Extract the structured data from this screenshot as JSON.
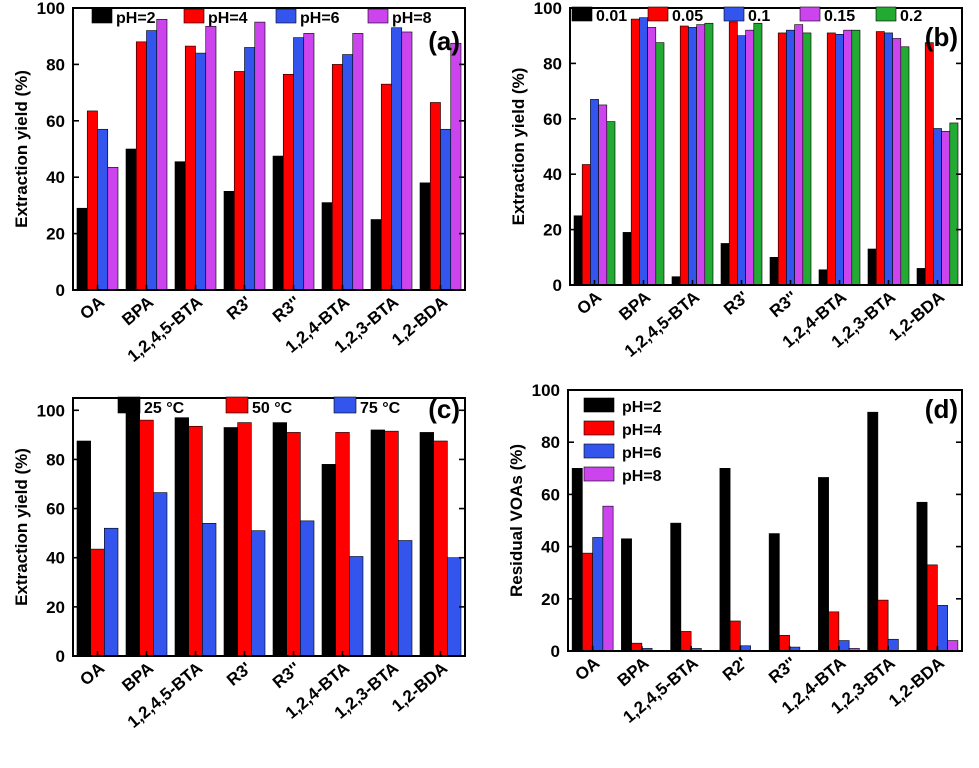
{
  "chart_data": [
    {
      "id": "a",
      "type": "bar",
      "panel_label": "(a)",
      "ylabel": "Extraction yield (%)",
      "ylim": [
        0,
        100
      ],
      "yticks": [
        0,
        20,
        40,
        60,
        80,
        100
      ],
      "categories": [
        "OA",
        "BPA",
        "1,2,4,5-BTA",
        "R3'",
        "R3''",
        "1,2,4-BTA",
        "1,2,3-BTA",
        "1,2-BDA"
      ],
      "legend_position": "top",
      "series": [
        {
          "name": "pH=2",
          "color": "#000000",
          "values": [
            29,
            50,
            45.5,
            35,
            47.5,
            31,
            25,
            38
          ]
        },
        {
          "name": "pH=4",
          "color": "#ff0000",
          "values": [
            63.5,
            88,
            86.5,
            77.5,
            76.5,
            80,
            73,
            66.5
          ]
        },
        {
          "name": "pH=6",
          "color": "#3355ee",
          "values": [
            57,
            92,
            84,
            86,
            89.5,
            83.5,
            93,
            57
          ]
        },
        {
          "name": "pH=8",
          "color": "#cc44ee",
          "values": [
            43.5,
            96,
            93.5,
            95,
            91,
            91,
            91.5,
            87.5
          ]
        }
      ]
    },
    {
      "id": "b",
      "type": "bar",
      "panel_label": "(b)",
      "ylabel": "Extraction yield (%)",
      "ylim": [
        0,
        100
      ],
      "yticks": [
        0,
        20,
        40,
        60,
        80,
        100
      ],
      "categories": [
        "OA",
        "BPA",
        "1,2,4,5-BTA",
        "R3'",
        "R3''",
        "1,2,4-BTA",
        "1,2,3-BTA",
        "1,2-BDA"
      ],
      "legend_position": "top",
      "series": [
        {
          "name": "0.01",
          "color": "#000000",
          "values": [
            25,
            19,
            3,
            15,
            10,
            5.5,
            13,
            6
          ]
        },
        {
          "name": "0.05",
          "color": "#ff0000",
          "values": [
            43.5,
            96,
            93.5,
            95,
            91,
            91,
            91.5,
            87.5
          ]
        },
        {
          "name": "0.1",
          "color": "#3355ee",
          "values": [
            67,
            96.5,
            93,
            90,
            92,
            90.5,
            91,
            56.5
          ]
        },
        {
          "name": "0.15",
          "color": "#cc44ee",
          "values": [
            65,
            93,
            94,
            92,
            94,
            92,
            89,
            55.5
          ]
        },
        {
          "name": "0.2",
          "color": "#22aa33",
          "values": [
            59,
            87.5,
            94.5,
            94.5,
            91,
            92,
            86,
            58.5
          ]
        }
      ]
    },
    {
      "id": "c",
      "type": "bar",
      "panel_label": "(c)",
      "ylabel": "Extraction yield (%)",
      "ylim": [
        0,
        105
      ],
      "yticks": [
        0,
        20,
        40,
        60,
        80,
        100
      ],
      "categories": [
        "OA",
        "BPA",
        "1,2,4,5-BTA",
        "R3'",
        "R3''",
        "1,2,4-BTA",
        "1,2,3-BTA",
        "1,2-BDA"
      ],
      "legend_position": "top",
      "series": [
        {
          "name": "25 °C",
          "color": "#000000",
          "values": [
            87.5,
            102,
            97,
            93,
            95,
            78,
            92,
            91
          ]
        },
        {
          "name": "50 °C",
          "color": "#ff0000",
          "values": [
            43.5,
            96,
            93.5,
            95,
            91,
            91,
            91.5,
            87.5
          ]
        },
        {
          "name": "75 °C",
          "color": "#3355ee",
          "values": [
            52,
            66.5,
            54,
            51,
            55,
            40.5,
            47,
            40
          ]
        }
      ]
    },
    {
      "id": "d",
      "type": "bar",
      "panel_label": "(d)",
      "ylabel": "Residual VOAs (%)",
      "ylim": [
        0,
        100
      ],
      "yticks": [
        0,
        20,
        40,
        60,
        80,
        100
      ],
      "categories": [
        "OA",
        "BPA",
        "1,2,4,5-BTA",
        "R2'",
        "R3''",
        "1,2,4-BTA",
        "1,2,3-BTA",
        "1,2-BDA"
      ],
      "legend_position": "top-left",
      "series": [
        {
          "name": "pH=2",
          "color": "#000000",
          "values": [
            70,
            43,
            49,
            70,
            45,
            66.5,
            91.5,
            57
          ]
        },
        {
          "name": "pH=4",
          "color": "#ff0000",
          "values": [
            37.5,
            3,
            7.5,
            11.5,
            6,
            15,
            19.5,
            33
          ]
        },
        {
          "name": "pH=6",
          "color": "#3355ee",
          "values": [
            43.5,
            1,
            1,
            2,
            1.5,
            4,
            4.5,
            17.5
          ]
        },
        {
          "name": "pH=8",
          "color": "#cc44ee",
          "values": [
            55.5,
            0,
            0,
            0,
            0,
            1,
            0,
            4
          ]
        }
      ]
    }
  ]
}
